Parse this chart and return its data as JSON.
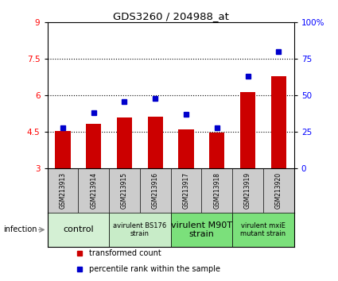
{
  "title": "GDS3260 / 204988_at",
  "samples": [
    "GSM213913",
    "GSM213914",
    "GSM213915",
    "GSM213916",
    "GSM213917",
    "GSM213918",
    "GSM213919",
    "GSM213920"
  ],
  "red_values": [
    4.55,
    4.85,
    5.1,
    5.12,
    4.6,
    4.48,
    6.15,
    6.8
  ],
  "blue_values": [
    28,
    38,
    46,
    48,
    37,
    28,
    63,
    80
  ],
  "ylim_left": [
    3,
    9
  ],
  "ylim_right": [
    0,
    100
  ],
  "yticks_left": [
    3,
    4.5,
    6,
    7.5,
    9
  ],
  "yticks_right": [
    0,
    25,
    50,
    75,
    100
  ],
  "ytick_labels_right": [
    "0",
    "25",
    "50",
    "75",
    "100%"
  ],
  "ytick_labels_left": [
    "3",
    "4.5",
    "6",
    "7.5",
    "9"
  ],
  "hlines": [
    4.5,
    6.0,
    7.5
  ],
  "bar_color": "#cc0000",
  "dot_color": "#0000cc",
  "bar_width": 0.5,
  "legend_label_red": "transformed count",
  "legend_label_blue": "percentile rank within the sample",
  "infection_label": "infection",
  "sample_bg_color": "#cccccc",
  "group_defs": [
    {
      "cols": [
        0,
        1
      ],
      "label": "control",
      "color": "#d4f0d4",
      "fontsize": 8
    },
    {
      "cols": [
        2,
        3
      ],
      "label": "avirulent BS176\nstrain",
      "color": "#c8ecc8",
      "fontsize": 6
    },
    {
      "cols": [
        4,
        5
      ],
      "label": "virulent M90T\nstrain",
      "color": "#7be07b",
      "fontsize": 8
    },
    {
      "cols": [
        6,
        7
      ],
      "label": "virulent mxiE\nmutant strain",
      "color": "#7be07b",
      "fontsize": 6
    }
  ]
}
